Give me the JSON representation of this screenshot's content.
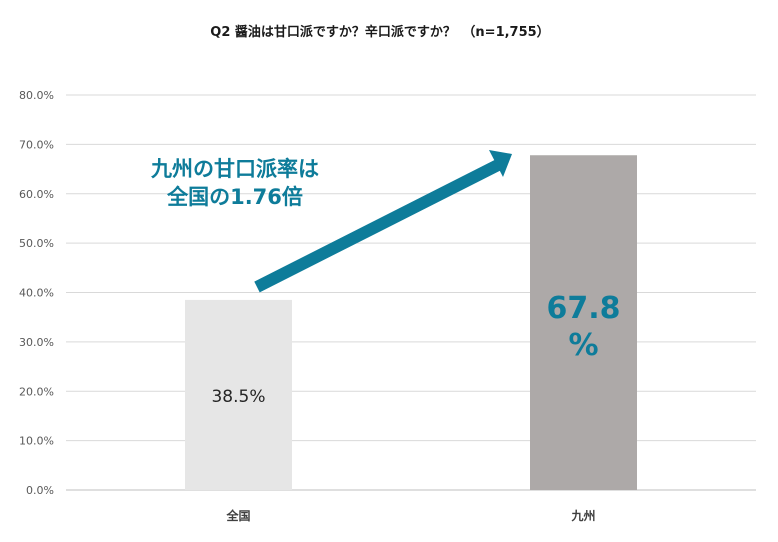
{
  "chart_data": {
    "type": "bar",
    "title": "Q2 醤油は甘口派ですか？辛口派ですか？　（n=1,755）",
    "categories": [
      "全国",
      "九州"
    ],
    "values": [
      38.5,
      67.8
    ],
    "value_labels": [
      "38.5%",
      "67.8\n%"
    ],
    "ylim": [
      0,
      80
    ],
    "yticks": [
      "0.0%",
      "10.0%",
      "20.0%",
      "30.0%",
      "40.0%",
      "50.0%",
      "60.0%",
      "70.0%",
      "80.0%"
    ],
    "grid": true,
    "annotation": {
      "lines": [
        "九州の甘口派率は",
        "全国の1.76倍"
      ],
      "arrow_color": "#0e7c9a"
    },
    "colors": [
      "#e6e6e6",
      "#ada9a8"
    ],
    "highlight_color": "#0e7c9a"
  }
}
